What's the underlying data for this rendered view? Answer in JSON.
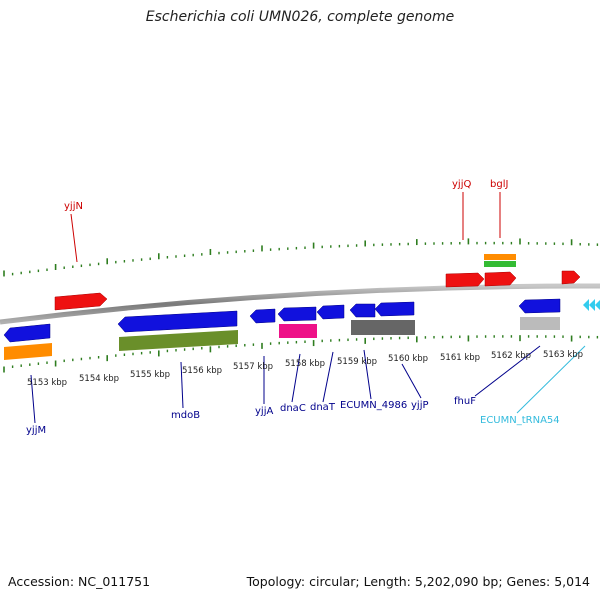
{
  "title": "Escherichia coli UMN026, complete genome",
  "footer": {
    "accession": "Accession: NC_011751",
    "topology": "Topology: circular; Length: 5,202,090 bp; Genes: 5,014"
  },
  "colors": {
    "backbone": "#888888",
    "tick": "#2e7d1f",
    "forward_label": "#cc0000",
    "reverse_label": "#00008b",
    "trna_label": "#33bbdd",
    "gene_forward": "#ee1111",
    "gene_reverse": "#1111dd",
    "cds_olive": "#6a8f2a",
    "cds_orange": "#ff8c00",
    "cds_pink": "#ee1188",
    "cds_gray": "#666666",
    "cds_lightgray": "#bbbbbb",
    "cds_green": "#33bb33",
    "trna": "#33ccee"
  },
  "scale_labels": [
    "5153 kbp",
    "5154 kbp",
    "5155 kbp",
    "5156 kbp",
    "5157 kbp",
    "5158 kbp",
    "5159 kbp",
    "5160 kbp",
    "5161 kbp",
    "5162 kbp",
    "5163 kbp"
  ],
  "forward_gene_labels": [
    "yjjN",
    "yjjQ",
    "bglJ"
  ],
  "reverse_gene_labels": [
    "yjjM",
    "mdoB",
    "yjjA",
    "dnaC",
    "dnaT",
    "ECUMN_4986",
    "yjjP",
    "fhuF"
  ],
  "trna_labels": [
    "ECUMN_tRNA54"
  ]
}
